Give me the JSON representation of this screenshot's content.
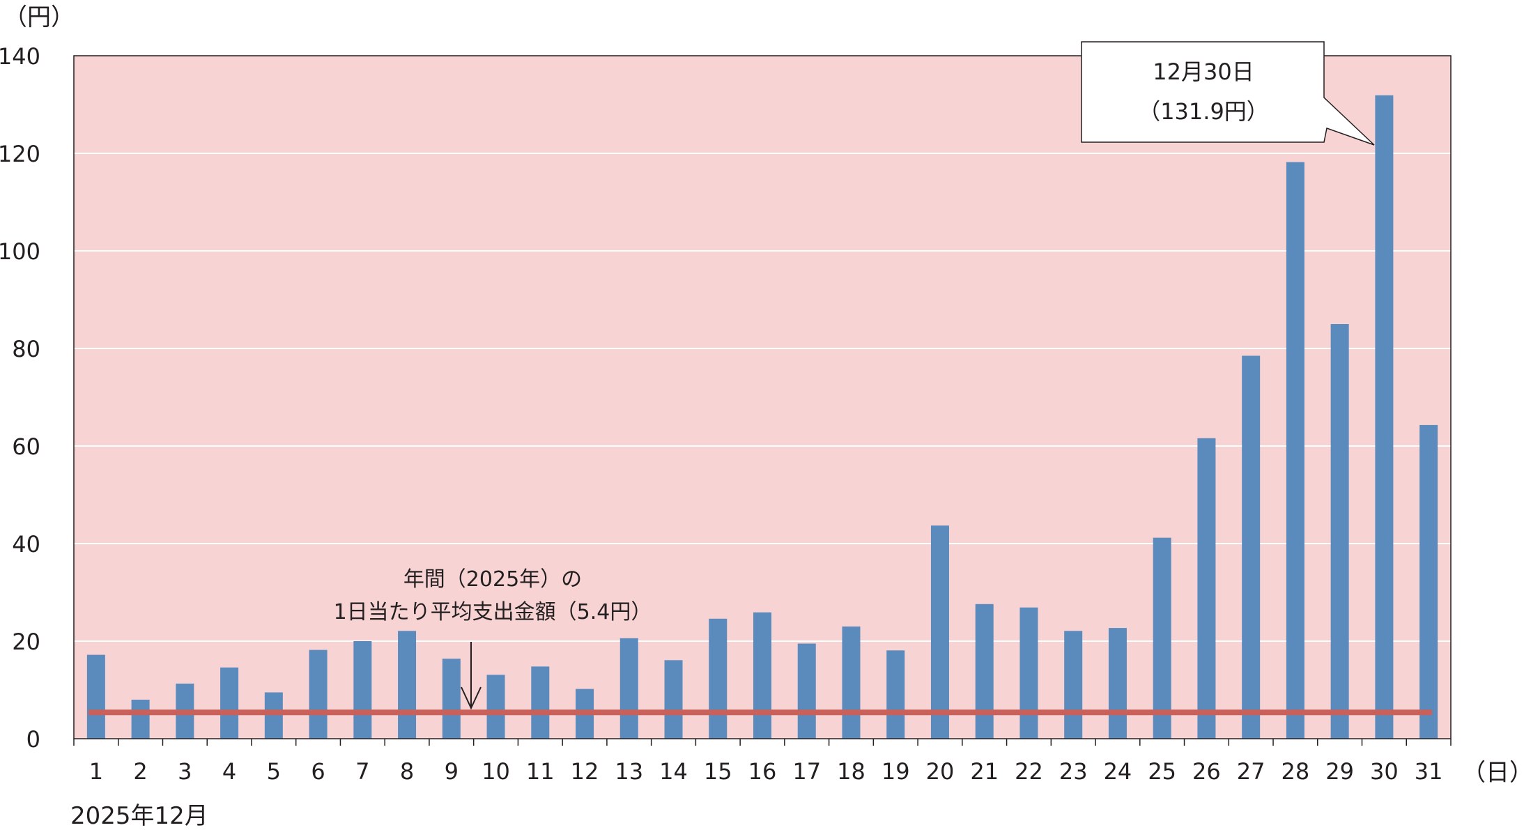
{
  "chart_data": {
    "type": "bar",
    "title": "",
    "y_unit_label": "（円）",
    "x_unit_label": "（日）",
    "period_label": "2025年12月",
    "ylim": [
      0,
      140
    ],
    "y_ticks": [
      "0",
      "20",
      "40",
      "60",
      "80",
      "100",
      "120",
      "140"
    ],
    "grid": true,
    "categories": [
      "1",
      "2",
      "3",
      "4",
      "5",
      "6",
      "7",
      "8",
      "9",
      "10",
      "11",
      "12",
      "13",
      "14",
      "15",
      "16",
      "17",
      "18",
      "19",
      "20",
      "21",
      "22",
      "23",
      "24",
      "25",
      "26",
      "27",
      "28",
      "29",
      "30",
      "31"
    ],
    "values": [
      17.2,
      8.0,
      11.3,
      14.6,
      9.5,
      18.2,
      20.0,
      22.1,
      16.4,
      13.1,
      14.8,
      10.2,
      20.6,
      16.1,
      24.6,
      25.9,
      19.5,
      23.0,
      18.1,
      43.7,
      27.6,
      26.9,
      22.1,
      22.7,
      41.2,
      61.6,
      78.5,
      118.2,
      85.0,
      131.9,
      64.3
    ],
    "reference_line": {
      "value": 5.4,
      "label_line1": "年間（2025年）の",
      "label_line2": "1日当たり平均支出金額（5.4円）"
    },
    "callout": {
      "category": "30",
      "line1": "12月30日",
      "line2": "（131.9円）"
    },
    "colors": {
      "plot_background": "#f7d3d3",
      "bar": "#5b8bbd",
      "reference_line": "#c9605a",
      "grid": "#ffffff"
    }
  }
}
